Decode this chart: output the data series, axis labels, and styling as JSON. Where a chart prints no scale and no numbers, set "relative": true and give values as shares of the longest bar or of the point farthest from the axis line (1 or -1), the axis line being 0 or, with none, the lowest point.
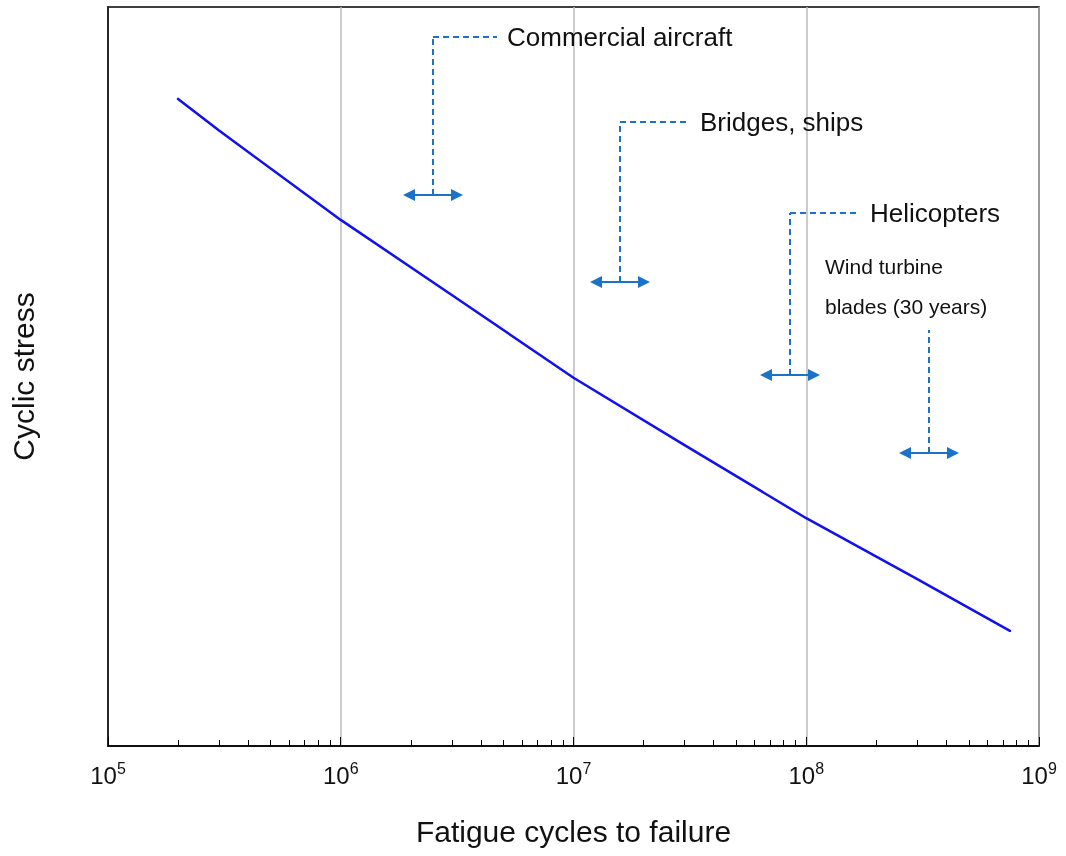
{
  "chart_data": {
    "type": "line",
    "relative": true,
    "log": "x",
    "xlabel": "Fatigue cycles to failure",
    "ylabel": "Cyclic stress",
    "x": [
      200000,
      300000,
      1000000,
      3000000,
      10000000,
      30000000,
      100000000,
      300000000,
      750000000
    ],
    "series": [
      {
        "color": "#1010f0",
        "values": [
          1,
          0.951,
          0.813,
          0.697,
          0.569,
          0.465,
          0.352,
          0.258,
          0.178
        ]
      }
    ],
    "xlim": [
      100000,
      1000000000
    ],
    "xticks": [
      {
        "value": 100000,
        "label": "10$^{5}$"
      },
      {
        "value": 200000,
        "label": null
      },
      {
        "value": 300000,
        "label": null
      },
      {
        "value": 400000,
        "label": null
      },
      {
        "value": 500000,
        "label": null
      },
      {
        "value": 600000,
        "label": null
      },
      {
        "value": 700000,
        "label": null
      },
      {
        "value": 800000,
        "label": null
      },
      {
        "value": 900000,
        "label": null
      },
      {
        "value": 1000000,
        "label": "10$^{6}$"
      },
      {
        "value": 2000000,
        "label": null
      },
      {
        "value": 3000000,
        "label": null
      },
      {
        "value": 4000000,
        "label": null
      },
      {
        "value": 5000000,
        "label": null
      },
      {
        "value": 6000000,
        "label": null
      },
      {
        "value": 7000000,
        "label": null
      },
      {
        "value": 8000000,
        "label": null
      },
      {
        "value": 9000000,
        "label": null
      },
      {
        "value": 10000000,
        "label": "10$^{7}$"
      },
      {
        "value": 20000000,
        "label": null
      },
      {
        "value": 30000000,
        "label": null
      },
      {
        "value": 40000000,
        "label": null
      },
      {
        "value": 50000000,
        "label": null
      },
      {
        "value": 60000000,
        "label": null
      },
      {
        "value": 70000000,
        "label": null
      },
      {
        "value": 80000000,
        "label": null
      },
      {
        "value": 90000000,
        "label": null
      },
      {
        "value": 100000000,
        "label": "10$^{8}$"
      },
      {
        "value": 200000000,
        "label": null
      },
      {
        "value": 300000000,
        "label": null
      },
      {
        "value": 400000000,
        "label": null
      },
      {
        "value": 500000000,
        "label": null
      },
      {
        "value": 600000000,
        "label": null
      },
      {
        "value": 700000000,
        "label": null
      },
      {
        "value": 800000000,
        "label": null
      },
      {
        "value": 900000000,
        "label": null
      },
      {
        "value": 1000000000,
        "label": "10$^{9}$"
      }
    ],
    "grid": "x",
    "marker": "none",
    "line_style": "solid",
    "annotations": [
      "Commercial aircraft",
      "Bridges, ships",
      "Helicopters",
      "Wind turbine blades (30 years)"
    ]
  }
}
